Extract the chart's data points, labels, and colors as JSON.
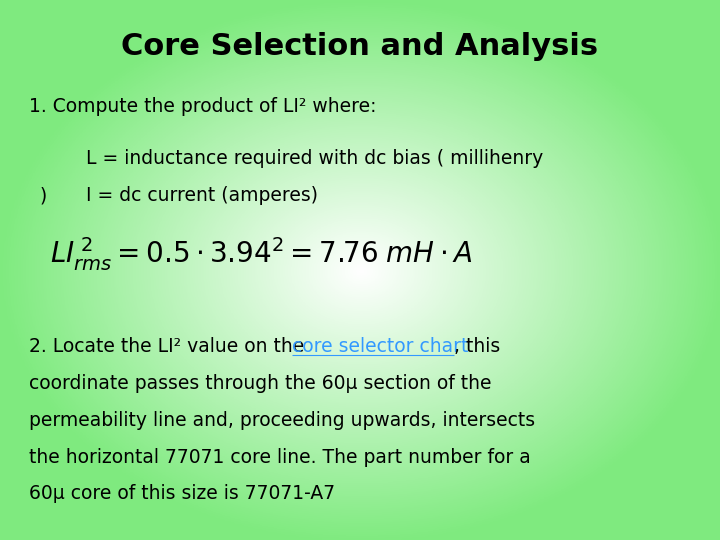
{
  "title": "Core Selection and Analysis",
  "title_fontsize": 22,
  "line1": "1. Compute the product of LI² where:",
  "line2a": "L = inductance required with dc bias ( millihenry",
  "line2b": ")",
  "line3": "I = dc current (amperes)",
  "para2_prefix": "2. Locate the LI² value on the ",
  "para2_link": "core selector chart",
  "para2_suffix": ", this",
  "para2_line2": "coordinate passes through the 60μ section of the",
  "para2_line3": "permeability line and, proceeding upwards, intersects",
  "para2_line4": "the horizontal 77071 core line. The part number for a",
  "para2_line5": "60μ core of this size is 77071-A7",
  "text_color": "#000000",
  "link_color": "#3399ff",
  "body_fontsize": 13.5,
  "formula_fontsize": 20
}
